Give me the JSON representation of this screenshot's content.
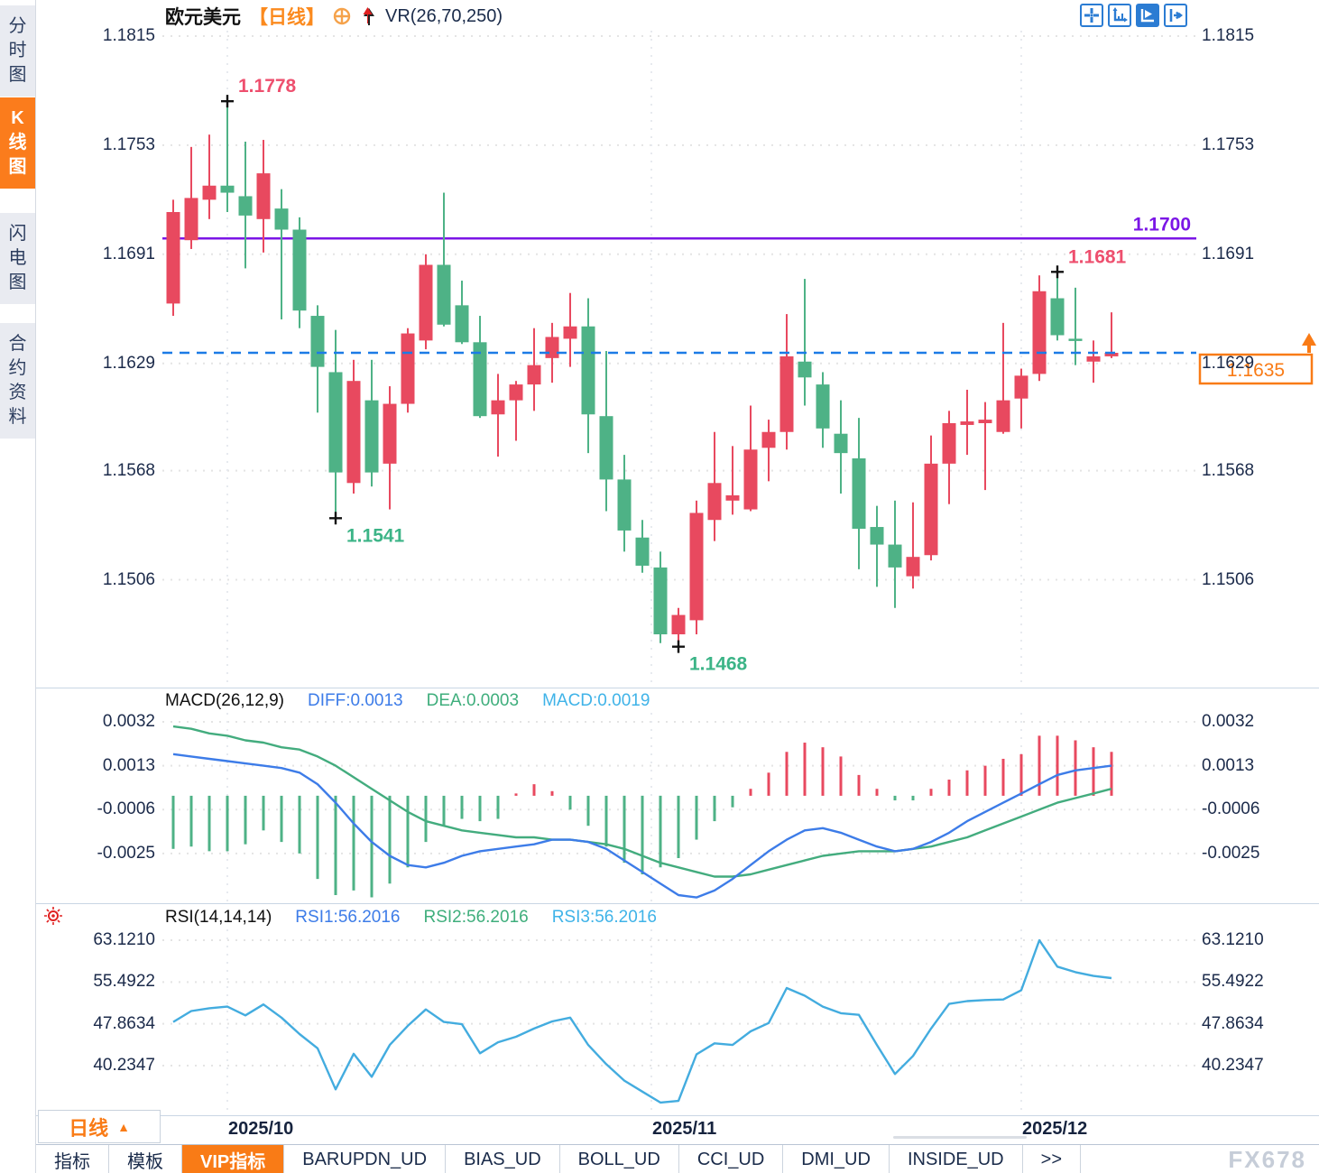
{
  "header": {
    "symbol": "欧元美元",
    "period": "【日线】",
    "vr": "VR(26,70,250)"
  },
  "toolbar_icons": [
    {
      "name": "crosshair-move-icon",
      "active": false
    },
    {
      "name": "axis-scale-icon",
      "active": false
    },
    {
      "name": "auto-scroll-icon",
      "active": true
    },
    {
      "name": "goto-latest-icon",
      "active": false
    }
  ],
  "sidebar": {
    "items": [
      {
        "label": "分时图",
        "active": false
      },
      {
        "label": "K线图",
        "active": true
      },
      {
        "label": "闪电图",
        "active": false
      },
      {
        "label": "合约资料",
        "active": false
      }
    ]
  },
  "indicators": {
    "macd": {
      "title": "MACD(26,12,9)",
      "diff": "DIFF:0.0013",
      "dea": "DEA:0.0003",
      "macd": "MACD:0.0019"
    },
    "rsi": {
      "title": "RSI(14,14,14)",
      "rsi1": "RSI1:56.2016",
      "rsi2": "RSI2:56.2016",
      "rsi3": "RSI3:56.2016"
    }
  },
  "bottom": {
    "period_button": {
      "label": "日线",
      "arrow": "▲"
    },
    "tabs": [
      "指标",
      "模板",
      "VIP指标",
      "BARUPDN_UD",
      "BIAS_UD",
      "BOLL_UD",
      "CCI_UD",
      "DMI_UD",
      "INSIDE_UD",
      ">>"
    ],
    "active_tab": "VIP指标"
  },
  "watermark": "FX678",
  "colors": {
    "up": "#e8495f",
    "down": "#4eb286",
    "diff_line": "#3d7ce8",
    "dea_line": "#43ac7e",
    "rsi_line": "#43acdf",
    "level_line": "#7b16e6",
    "current_line": "#1c7be6",
    "orange": "#f97b16",
    "annotation_red": "#ee4f6e",
    "annotation_green": "#3cb487",
    "axis_text": "#1b2a4a",
    "grid": "#e4e4e4"
  },
  "chart_data": {
    "type": "candlestick",
    "symbol": "EUR/USD 欧元美元",
    "timeframe": "日线 (daily)",
    "price_axis_ticks": [
      "1.1815",
      "1.1753",
      "1.1691",
      "1.1629",
      "1.1568",
      "1.1506"
    ],
    "months": [
      {
        "label": "2025/10",
        "candle": 4
      },
      {
        "label": "2025/11",
        "candle": 27.5
      },
      {
        "label": "2025/12",
        "candle": 48
      }
    ],
    "candles_ohlc": [
      [
        1.1663,
        1.1722,
        1.1656,
        1.1715
      ],
      [
        1.1699,
        1.1752,
        1.1694,
        1.1723
      ],
      [
        1.1722,
        1.1759,
        1.1711,
        1.173
      ],
      [
        1.173,
        1.1778,
        1.1715,
        1.1726
      ],
      [
        1.1724,
        1.1755,
        1.1683,
        1.1713
      ],
      [
        1.1711,
        1.1756,
        1.1692,
        1.1737
      ],
      [
        1.1717,
        1.1728,
        1.1654,
        1.1705
      ],
      [
        1.1705,
        1.1712,
        1.1649,
        1.1659
      ],
      [
        1.1656,
        1.1662,
        1.1601,
        1.1627
      ],
      [
        1.1624,
        1.1648,
        1.1541,
        1.1567
      ],
      [
        1.1561,
        1.1631,
        1.1555,
        1.1619
      ],
      [
        1.1608,
        1.1631,
        1.1559,
        1.1567
      ],
      [
        1.1572,
        1.1616,
        1.1546,
        1.1606
      ],
      [
        1.1606,
        1.1649,
        1.1601,
        1.1646
      ],
      [
        1.1642,
        1.1691,
        1.1637,
        1.1685
      ],
      [
        1.1685,
        1.1726,
        1.165,
        1.1651
      ],
      [
        1.1662,
        1.1676,
        1.164,
        1.1641
      ],
      [
        1.1641,
        1.1656,
        1.1598,
        1.1599
      ],
      [
        1.16,
        1.1623,
        1.1576,
        1.1608
      ],
      [
        1.1608,
        1.1619,
        1.1585,
        1.1617
      ],
      [
        1.1617,
        1.1649,
        1.1602,
        1.1628
      ],
      [
        1.1632,
        1.1652,
        1.1618,
        1.1644
      ],
      [
        1.1643,
        1.1669,
        1.1627,
        1.165
      ],
      [
        1.165,
        1.1666,
        1.1578,
        1.16
      ],
      [
        1.1599,
        1.1636,
        1.1545,
        1.1563
      ],
      [
        1.1563,
        1.1577,
        1.1522,
        1.1534
      ],
      [
        1.153,
        1.154,
        1.151,
        1.1514
      ],
      [
        1.1513,
        1.1522,
        1.147,
        1.1475
      ],
      [
        1.1475,
        1.149,
        1.1468,
        1.1486
      ],
      [
        1.1483,
        1.1551,
        1.1475,
        1.1544
      ],
      [
        1.154,
        1.159,
        1.1528,
        1.1561
      ],
      [
        1.1551,
        1.1582,
        1.1543,
        1.1554
      ],
      [
        1.1546,
        1.1605,
        1.1545,
        1.158
      ],
      [
        1.1581,
        1.1597,
        1.1562,
        1.159
      ],
      [
        1.159,
        1.1657,
        1.158,
        1.1633
      ],
      [
        1.163,
        1.1677,
        1.1605,
        1.1621
      ],
      [
        1.1617,
        1.1624,
        1.1581,
        1.1592
      ],
      [
        1.1589,
        1.1608,
        1.1555,
        1.1578
      ],
      [
        1.1575,
        1.1598,
        1.1512,
        1.1535
      ],
      [
        1.1536,
        1.1548,
        1.1502,
        1.1526
      ],
      [
        1.1526,
        1.1551,
        1.149,
        1.1513
      ],
      [
        1.1508,
        1.155,
        1.1501,
        1.1519
      ],
      [
        1.152,
        1.1588,
        1.1517,
        1.1572
      ],
      [
        1.1572,
        1.1602,
        1.1549,
        1.1595
      ],
      [
        1.1594,
        1.1614,
        1.1577,
        1.1596
      ],
      [
        1.1595,
        1.1607,
        1.1557,
        1.1597
      ],
      [
        1.159,
        1.1652,
        1.1589,
        1.1608
      ],
      [
        1.1609,
        1.1626,
        1.1592,
        1.1622
      ],
      [
        1.1623,
        1.1679,
        1.1619,
        1.167
      ],
      [
        1.1666,
        1.1681,
        1.1642,
        1.1645
      ],
      [
        1.1643,
        1.1672,
        1.1628,
        1.1642
      ],
      [
        1.163,
        1.1642,
        1.1618,
        1.1633
      ],
      [
        1.1633,
        1.1658,
        1.1632,
        1.1635
      ]
    ],
    "annotations": [
      {
        "text": "1.1778",
        "candle": 4,
        "at": "high",
        "color": "#ee4f6e"
      },
      {
        "text": "1.1541",
        "candle": 10,
        "at": "low",
        "color": "#3cb487"
      },
      {
        "text": "1.1468",
        "candle": 29,
        "at": "low",
        "color": "#3cb487"
      },
      {
        "text": "1.1681",
        "candle": 50,
        "at": "high",
        "color": "#ee4f6e"
      }
    ],
    "level_line": {
      "price": 1.17,
      "label": "1.1700"
    },
    "current_price": {
      "price": 1.1635,
      "label": "1.1635"
    },
    "macd": {
      "axis_ticks": [
        "0.0032",
        "0.0013",
        "-0.0006",
        "-0.0025"
      ],
      "hist": [
        -0.0023,
        -0.0022,
        -0.0024,
        -0.0024,
        -0.0021,
        -0.0015,
        -0.002,
        -0.0025,
        -0.0036,
        -0.0043,
        -0.0041,
        -0.0044,
        -0.0038,
        -0.0031,
        -0.002,
        -0.0013,
        -0.001,
        -0.0011,
        -0.001,
        0.0001,
        0.0005,
        0.0002,
        -0.0006,
        -0.0013,
        -0.0022,
        -0.0029,
        -0.0034,
        -0.0031,
        -0.0027,
        -0.0019,
        -0.0011,
        -0.0005,
        0.0003,
        0.001,
        0.0019,
        0.0023,
        0.0021,
        0.0017,
        0.0009,
        0.0003,
        -0.0002,
        -0.0002,
        0.0003,
        0.0007,
        0.0011,
        0.0013,
        0.0016,
        0.0018,
        0.0026,
        0.0026,
        0.0024,
        0.0021,
        0.0019
      ],
      "diff": [
        0.0018,
        0.0017,
        0.0016,
        0.0015,
        0.0014,
        0.0013,
        0.0012,
        0.001,
        0.0005,
        -0.0003,
        -0.0012,
        -0.002,
        -0.0026,
        -0.003,
        -0.0031,
        -0.0029,
        -0.0026,
        -0.0024,
        -0.0023,
        -0.0022,
        -0.0021,
        -0.0019,
        -0.0019,
        -0.002,
        -0.0023,
        -0.0028,
        -0.0033,
        -0.0038,
        -0.0043,
        -0.0044,
        -0.0041,
        -0.0036,
        -0.003,
        -0.0024,
        -0.0019,
        -0.0015,
        -0.0014,
        -0.0016,
        -0.0019,
        -0.0022,
        -0.0024,
        -0.0023,
        -0.002,
        -0.0016,
        -0.0011,
        -0.0007,
        -0.0003,
        0.0001,
        0.0005,
        0.0009,
        0.0011,
        0.0012,
        0.0013
      ],
      "dea": [
        0.003,
        0.0029,
        0.0027,
        0.0026,
        0.0024,
        0.0023,
        0.0021,
        0.002,
        0.0017,
        0.0013,
        0.0008,
        0.0003,
        -0.0002,
        -0.0007,
        -0.0011,
        -0.0013,
        -0.0015,
        -0.0016,
        -0.0017,
        -0.0018,
        -0.0018,
        -0.0019,
        -0.0019,
        -0.002,
        -0.0021,
        -0.0023,
        -0.0026,
        -0.0029,
        -0.0031,
        -0.0033,
        -0.0035,
        -0.0035,
        -0.0034,
        -0.0032,
        -0.003,
        -0.0028,
        -0.0026,
        -0.0025,
        -0.0024,
        -0.0024,
        -0.0024,
        -0.0023,
        -0.0022,
        -0.002,
        -0.0018,
        -0.0015,
        -0.0012,
        -0.0009,
        -0.0006,
        -0.0003,
        -0.0001,
        0.0001,
        0.0003
      ]
    },
    "rsi": {
      "axis_ticks": [
        "63.1210",
        "55.4922",
        "47.8634",
        "40.2347"
      ],
      "values": [
        48.2,
        50.2,
        50.7,
        51.0,
        49.4,
        51.4,
        49.0,
        46.0,
        43.4,
        35.9,
        42.4,
        38.2,
        44.0,
        47.5,
        50.5,
        48.2,
        47.8,
        42.5,
        44.5,
        45.5,
        47.0,
        48.3,
        49.0,
        44.0,
        40.5,
        37.5,
        35.5,
        33.5,
        33.8,
        42.3,
        44.3,
        44.0,
        46.5,
        48.0,
        54.4,
        53.0,
        51.0,
        49.8,
        49.5,
        44.0,
        38.7,
        42.0,
        47.0,
        51.5,
        52.0,
        52.2,
        52.3,
        54.0,
        63.1,
        58.3,
        57.3,
        56.6,
        56.2
      ]
    }
  }
}
